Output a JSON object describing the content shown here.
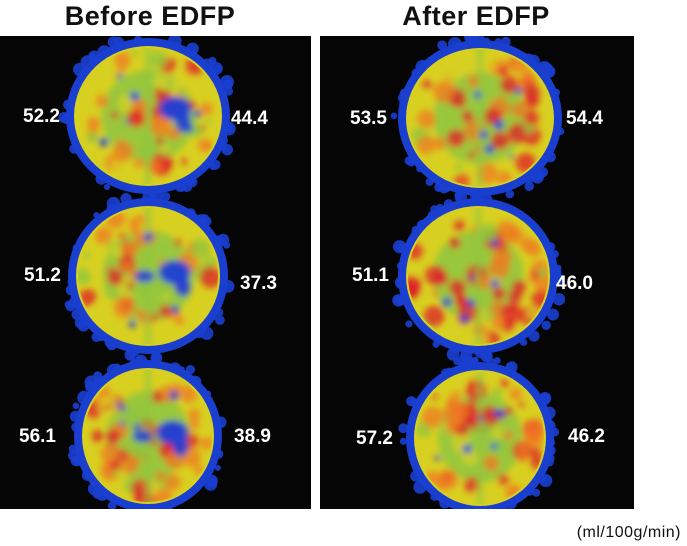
{
  "panels": [
    {
      "title": "Before EDFP",
      "slices": [
        {
          "left_value": "52.2",
          "right_value": "44.4"
        },
        {
          "left_value": "51.2",
          "right_value": "37.3"
        },
        {
          "left_value": "56.1",
          "right_value": "38.9"
        }
      ]
    },
    {
      "title": "After EDFP",
      "slices": [
        {
          "left_value": "53.5",
          "right_value": "54.4"
        },
        {
          "left_value": "51.1",
          "right_value": "46.0"
        },
        {
          "left_value": "57.2",
          "right_value": "46.2"
        }
      ]
    }
  ],
  "unit_label": "(ml/100g/min)",
  "colors": {
    "background": "#050505",
    "rim": "#1a3fd0",
    "cortex_outer": "#d8d020",
    "cortex_inner": "#8ec63f",
    "hot": "#e01a2a",
    "warm": "#f07820",
    "cold": "#1f3fd6"
  }
}
